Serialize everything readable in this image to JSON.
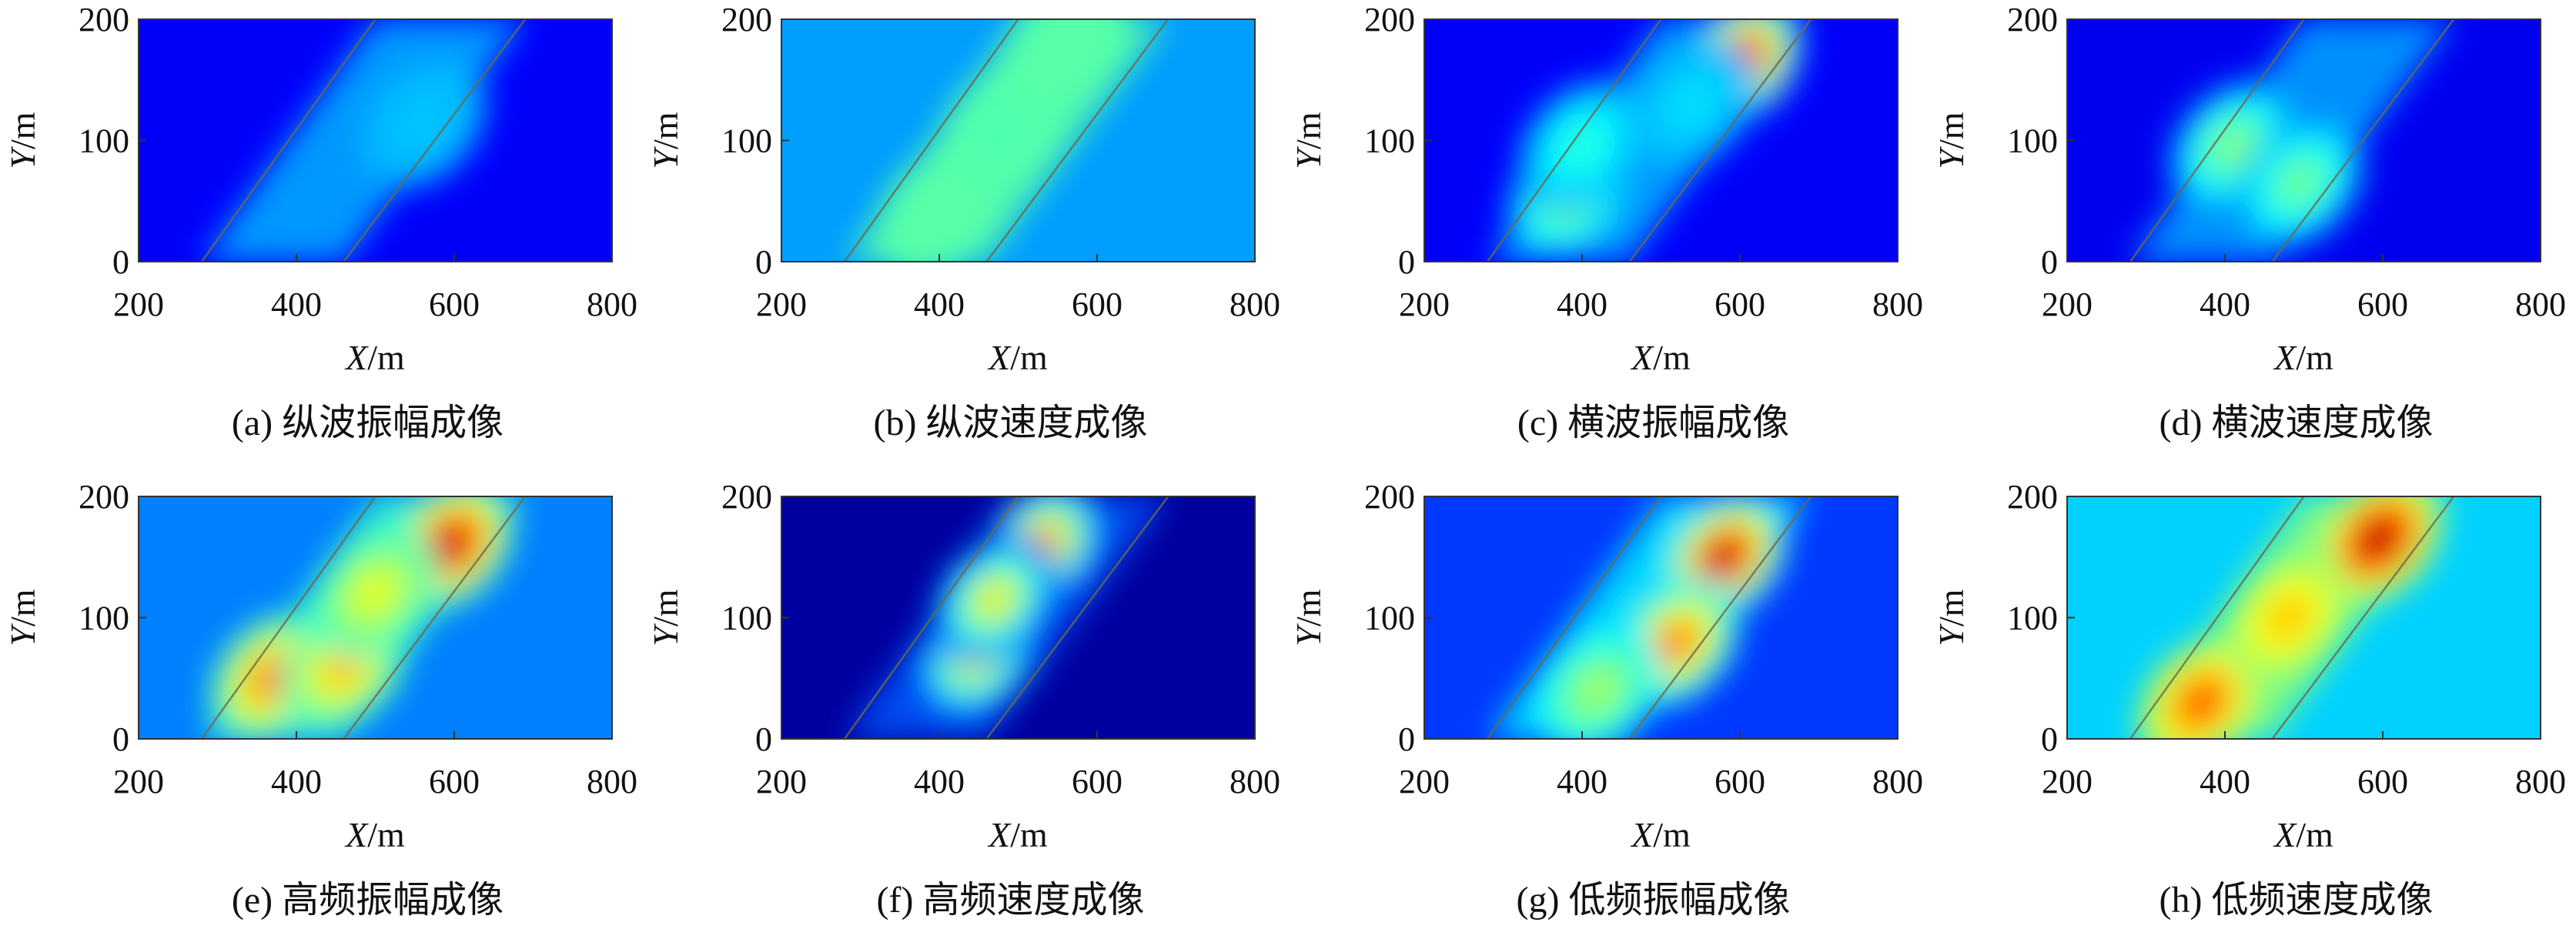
{
  "figure": {
    "panels": [
      {
        "id": "a",
        "caption": "(a) 纵波振幅成像",
        "xlabel_var": "X",
        "xlabel_unit": "/m",
        "ylabel_var": "Y",
        "ylabel_unit": "/m",
        "palette": "jet",
        "bg": 0.12
      },
      {
        "id": "b",
        "caption": "(b) 纵波速度成像",
        "xlabel_var": "X",
        "xlabel_unit": "/m",
        "ylabel_var": "Y",
        "ylabel_unit": "/m",
        "palette": "jet",
        "bg": 0.28
      },
      {
        "id": "c",
        "caption": "(c) 横波振幅成像",
        "xlabel_var": "X",
        "xlabel_unit": "/m",
        "ylabel_var": "Y",
        "ylabel_unit": "/m",
        "palette": "jet",
        "bg": 0.12
      },
      {
        "id": "d",
        "caption": "(d) 横波速度成像",
        "xlabel_var": "X",
        "xlabel_unit": "/m",
        "ylabel_var": "Y",
        "ylabel_unit": "/m",
        "palette": "jet",
        "bg": 0.11
      },
      {
        "id": "e",
        "caption": "(e) 高频振幅成像",
        "xlabel_var": "X",
        "xlabel_unit": "/m",
        "ylabel_var": "Y",
        "ylabel_unit": "/m",
        "palette": "jet",
        "bg": 0.25
      },
      {
        "id": "f",
        "caption": "(f) 高频速度成像",
        "xlabel_var": "X",
        "xlabel_unit": "/m",
        "ylabel_var": "Y",
        "ylabel_unit": "/m",
        "palette": "jet",
        "bg": 0.03
      },
      {
        "id": "g",
        "caption": "(g) 低频振幅成像",
        "xlabel_var": "X",
        "xlabel_unit": "/m",
        "ylabel_var": "Y",
        "ylabel_unit": "/m",
        "palette": "jet",
        "bg": 0.18
      },
      {
        "id": "h",
        "caption": "(h) 低频速度成像",
        "xlabel_var": "X",
        "xlabel_unit": "/m",
        "ylabel_var": "Y",
        "ylabel_unit": "/m",
        "palette": "jet",
        "bg": 0.33
      }
    ]
  },
  "chart_data": [
    {
      "type": "heatmap",
      "panel": "a",
      "caption": "(a) 纵波振幅成像",
      "xlabel": "X/m",
      "ylabel": "Y/m",
      "xlim": [
        200,
        800
      ],
      "ylim": [
        0,
        200
      ],
      "xticks": [
        200,
        400,
        600,
        800
      ],
      "yticks": [
        0,
        100,
        200
      ],
      "boundary_lines": [
        [
          [
            280,
            0
          ],
          [
            500,
            200
          ]
        ],
        [
          [
            460,
            0
          ],
          [
            690,
            200
          ]
        ]
      ],
      "anomalies": [
        {
          "x": 560,
          "y": 115,
          "value": 0.32
        }
      ],
      "grid": false,
      "legend": "none"
    },
    {
      "type": "heatmap",
      "panel": "b",
      "caption": "(b) 纵波速度成像",
      "xlabel": "X/m",
      "ylabel": "Y/m",
      "xlim": [
        200,
        800
      ],
      "ylim": [
        0,
        200
      ],
      "xticks": [
        200,
        400,
        600,
        800
      ],
      "yticks": [
        0,
        100,
        200
      ],
      "boundary_lines": [
        [
          [
            280,
            0
          ],
          [
            500,
            200
          ]
        ],
        [
          [
            460,
            0
          ],
          [
            690,
            200
          ]
        ]
      ],
      "anomalies": [
        {
          "x": 400,
          "y": 40,
          "value": 0.46
        },
        {
          "x": 480,
          "y": 110,
          "value": 0.45
        },
        {
          "x": 560,
          "y": 180,
          "value": 0.46
        }
      ],
      "grid": false,
      "legend": "none"
    },
    {
      "type": "heatmap",
      "panel": "c",
      "caption": "(c) 横波振幅成像",
      "xlabel": "X/m",
      "ylabel": "Y/m",
      "xlim": [
        200,
        800
      ],
      "ylim": [
        0,
        200
      ],
      "xticks": [
        200,
        400,
        600,
        800
      ],
      "yticks": [
        0,
        100,
        200
      ],
      "boundary_lines": [
        [
          [
            280,
            0
          ],
          [
            500,
            200
          ]
        ],
        [
          [
            460,
            0
          ],
          [
            690,
            200
          ]
        ]
      ],
      "anomalies": [
        {
          "x": 600,
          "y": 165,
          "value": 0.98
        },
        {
          "x": 385,
          "y": 55,
          "value": 0.55
        },
        {
          "x": 400,
          "y": 95,
          "value": 0.42
        },
        {
          "x": 540,
          "y": 130,
          "value": 0.35
        }
      ],
      "grid": false,
      "legend": "none"
    },
    {
      "type": "heatmap",
      "panel": "d",
      "caption": "(d) 横波速度成像",
      "xlabel": "X/m",
      "ylabel": "Y/m",
      "xlim": [
        200,
        800
      ],
      "ylim": [
        0,
        200
      ],
      "xticks": [
        200,
        400,
        600,
        800
      ],
      "yticks": [
        0,
        100,
        200
      ],
      "boundary_lines": [
        [
          [
            280,
            0
          ],
          [
            500,
            200
          ]
        ],
        [
          [
            460,
            0
          ],
          [
            690,
            200
          ]
        ]
      ],
      "anomalies": [
        {
          "x": 410,
          "y": 95,
          "value": 0.52
        },
        {
          "x": 495,
          "y": 65,
          "value": 0.5
        }
      ],
      "grid": false,
      "legend": "none"
    },
    {
      "type": "heatmap",
      "panel": "e",
      "caption": "(e) 高频振幅成像",
      "xlabel": "X/m",
      "ylabel": "Y/m",
      "xlim": [
        200,
        800
      ],
      "ylim": [
        0,
        200
      ],
      "xticks": [
        200,
        400,
        600,
        800
      ],
      "yticks": [
        0,
        100,
        200
      ],
      "boundary_lines": [
        [
          [
            280,
            0
          ],
          [
            500,
            200
          ]
        ],
        [
          [
            460,
            0
          ],
          [
            690,
            200
          ]
        ]
      ],
      "anomalies": [
        {
          "x": 595,
          "y": 160,
          "value": 0.97
        },
        {
          "x": 370,
          "y": 50,
          "value": 0.8
        },
        {
          "x": 460,
          "y": 60,
          "value": 0.72
        },
        {
          "x": 500,
          "y": 120,
          "value": 0.62
        }
      ],
      "grid": false,
      "legend": "none"
    },
    {
      "type": "heatmap",
      "panel": "f",
      "caption": "(f) 高频速度成像",
      "xlabel": "X/m",
      "ylabel": "Y/m",
      "xlim": [
        200,
        800
      ],
      "ylim": [
        0,
        200
      ],
      "xticks": [
        200,
        400,
        600,
        800
      ],
      "yticks": [
        0,
        100,
        200
      ],
      "boundary_lines": [
        [
          [
            280,
            0
          ],
          [
            500,
            200
          ]
        ],
        [
          [
            460,
            0
          ],
          [
            690,
            200
          ]
        ]
      ],
      "anomalies": [
        {
          "x": 530,
          "y": 160,
          "value": 0.78
        },
        {
          "x": 450,
          "y": 70,
          "value": 0.7
        },
        {
          "x": 470,
          "y": 115,
          "value": 0.66
        }
      ],
      "grid": false,
      "legend": "none"
    },
    {
      "type": "heatmap",
      "panel": "g",
      "caption": "(g) 低频振幅成像",
      "xlabel": "X/m",
      "ylabel": "Y/m",
      "xlim": [
        200,
        800
      ],
      "ylim": [
        0,
        200
      ],
      "xticks": [
        200,
        400,
        600,
        800
      ],
      "yticks": [
        0,
        100,
        200
      ],
      "boundary_lines": [
        [
          [
            280,
            0
          ],
          [
            500,
            200
          ]
        ],
        [
          [
            460,
            0
          ],
          [
            690,
            200
          ]
        ]
      ],
      "anomalies": [
        {
          "x": 580,
          "y": 150,
          "value": 0.98
        },
        {
          "x": 520,
          "y": 80,
          "value": 0.8
        },
        {
          "x": 420,
          "y": 40,
          "value": 0.55
        }
      ],
      "grid": false,
      "legend": "none"
    },
    {
      "type": "heatmap",
      "panel": "h",
      "caption": "(h) 低频速度成像",
      "xlabel": "X/m",
      "ylabel": "Y/m",
      "xlim": [
        200,
        800
      ],
      "ylim": [
        0,
        200
      ],
      "xticks": [
        200,
        400,
        600,
        800
      ],
      "yticks": [
        0,
        100,
        200
      ],
      "boundary_lines": [
        [
          [
            280,
            0
          ],
          [
            500,
            200
          ]
        ],
        [
          [
            460,
            0
          ],
          [
            690,
            200
          ]
        ]
      ],
      "anomalies": [
        {
          "x": 595,
          "y": 165,
          "value": 0.99
        },
        {
          "x": 370,
          "y": 30,
          "value": 0.82
        },
        {
          "x": 480,
          "y": 100,
          "value": 0.7
        }
      ],
      "grid": false,
      "legend": "none"
    }
  ]
}
